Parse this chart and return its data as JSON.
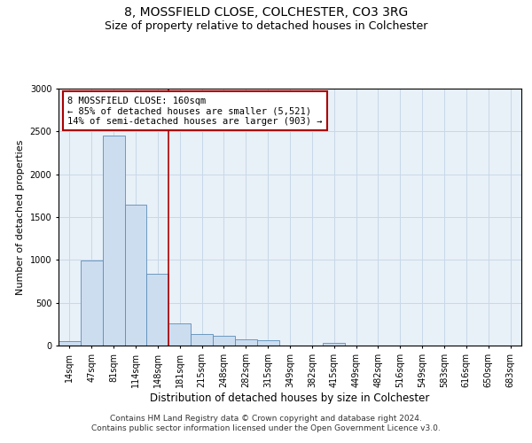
{
  "title_line1": "8, MOSSFIELD CLOSE, COLCHESTER, CO3 3RG",
  "title_line2": "Size of property relative to detached houses in Colchester",
  "xlabel": "Distribution of detached houses by size in Colchester",
  "ylabel": "Number of detached properties",
  "categories": [
    "14sqm",
    "47sqm",
    "81sqm",
    "114sqm",
    "148sqm",
    "181sqm",
    "215sqm",
    "248sqm",
    "282sqm",
    "315sqm",
    "349sqm",
    "382sqm",
    "415sqm",
    "449sqm",
    "482sqm",
    "516sqm",
    "549sqm",
    "583sqm",
    "616sqm",
    "650sqm",
    "683sqm"
  ],
  "values": [
    50,
    990,
    2450,
    1640,
    840,
    260,
    135,
    110,
    75,
    60,
    0,
    0,
    30,
    0,
    0,
    0,
    0,
    0,
    0,
    0,
    0
  ],
  "bar_color": "#ccddf0",
  "bar_edge_color": "#5b8db8",
  "vline_color": "#aa0000",
  "vline_x_index": 4.5,
  "annotation_box_text": "8 MOSSFIELD CLOSE: 160sqm\n← 85% of detached houses are smaller (5,521)\n14% of semi-detached houses are larger (903) →",
  "annotation_box_color": "#aa0000",
  "ylim": [
    0,
    3000
  ],
  "yticks": [
    0,
    500,
    1000,
    1500,
    2000,
    2500,
    3000
  ],
  "grid_color": "#c8d8e8",
  "bg_color": "#e8f0f8",
  "footnote": "Contains HM Land Registry data © Crown copyright and database right 2024.\nContains public sector information licensed under the Open Government Licence v3.0.",
  "title_fontsize": 10,
  "subtitle_fontsize": 9,
  "annotation_fontsize": 7.5,
  "tick_fontsize": 7,
  "ylabel_fontsize": 8,
  "xlabel_fontsize": 8.5,
  "footnote_fontsize": 6.5
}
